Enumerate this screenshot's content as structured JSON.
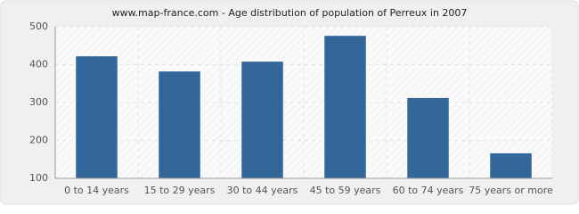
{
  "chart_data": {
    "type": "bar",
    "title": "www.map-france.com - Age distribution of population of Perreux in 2007",
    "categories": [
      "0 to 14 years",
      "15 to 29 years",
      "30 to 44 years",
      "45 to 59 years",
      "60 to 74 years",
      "75 years or more"
    ],
    "values": [
      422,
      382,
      408,
      476,
      312,
      166
    ],
    "color": "#336699",
    "ylim": [
      100,
      500
    ],
    "yticks": [
      100,
      200,
      300,
      400,
      500
    ],
    "grid": true
  }
}
